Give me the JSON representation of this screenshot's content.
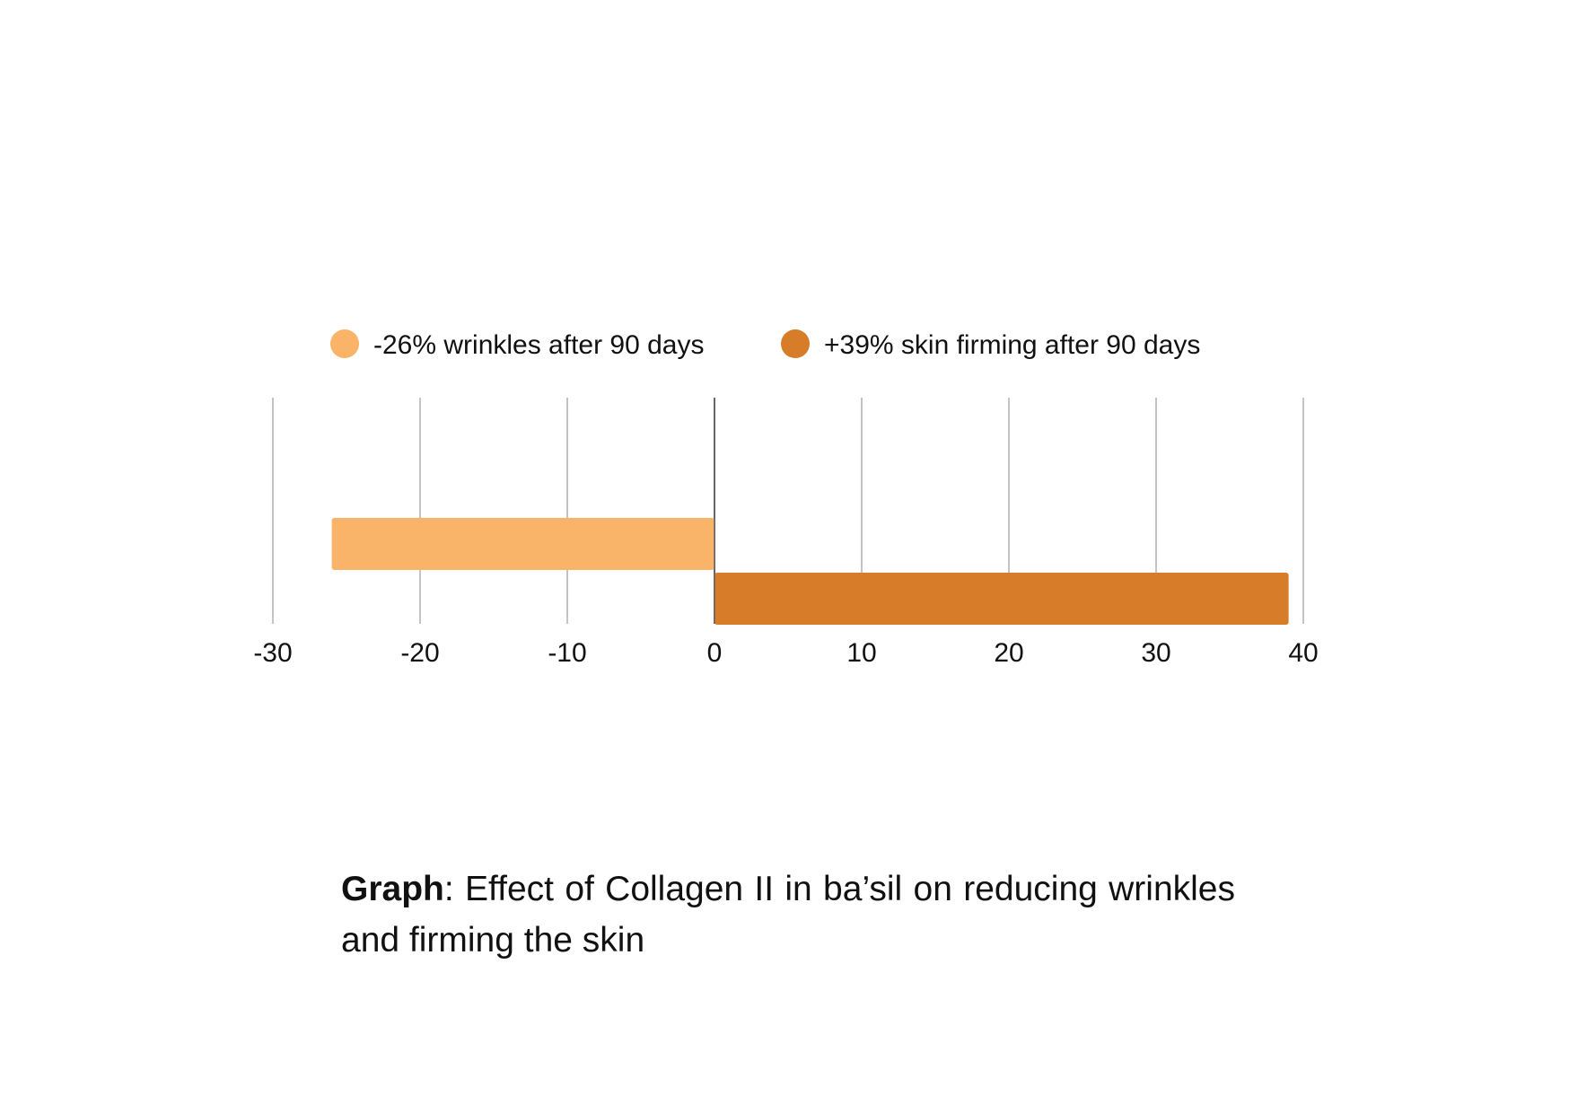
{
  "chart_data": {
    "type": "bar",
    "orientation": "horizontal",
    "series": [
      {
        "name": "-26% wrinkles after 90 days",
        "values": [
          -26
        ],
        "color": "#F9B46A"
      },
      {
        "name": "+39% skin firming after 90 days",
        "values": [
          39
        ],
        "color": "#D77C29"
      }
    ],
    "xlim": [
      -30,
      40
    ],
    "xticks": [
      -30,
      -20,
      -10,
      0,
      10,
      20,
      30,
      40
    ],
    "xtick_labels": [
      "-30",
      "-20",
      "-10",
      "0",
      "10",
      "20",
      "30",
      "40"
    ],
    "grid": "vertical",
    "legend_position": "top-center",
    "gridline_color": "#C4C4C4",
    "zero_line_color": "#666666"
  },
  "caption": {
    "label": "Graph",
    "separator": ":",
    "text": " Effect of Collagen II in ba’sil on reducing wrinkles and firming the skin"
  }
}
